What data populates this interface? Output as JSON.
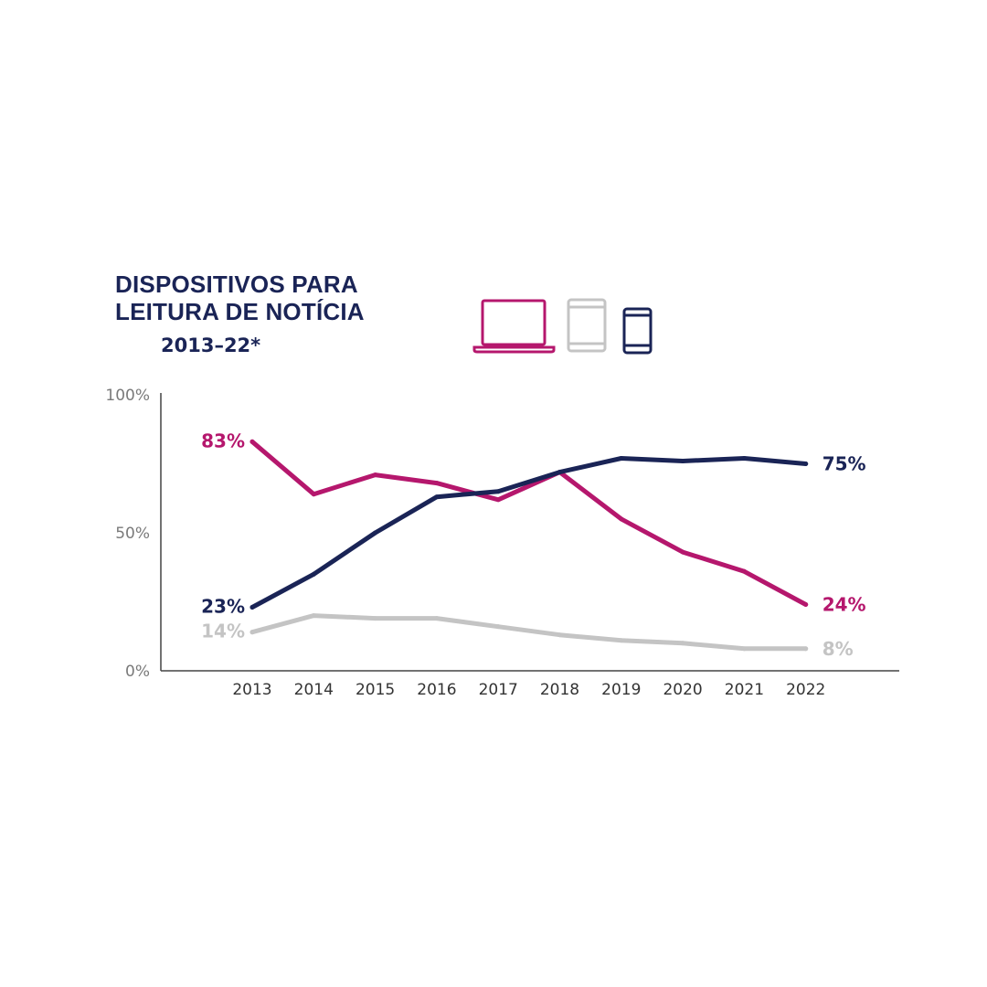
{
  "header": {
    "title_line1": "DISPOSITIVOS PARA",
    "title_line2": "LEITURA DE NOTÍCIA",
    "subtitle": "2013–22*"
  },
  "legend_icons": [
    {
      "name": "laptop-icon",
      "color": "#b5176d"
    },
    {
      "name": "tablet-icon",
      "color": "#c4c4c4"
    },
    {
      "name": "smartphone-icon",
      "color": "#1a2456"
    }
  ],
  "chart_data": {
    "type": "line",
    "x": [
      "2013",
      "2014",
      "2015",
      "2016",
      "2017",
      "2018",
      "2019",
      "2020",
      "2021",
      "2022"
    ],
    "ylim": [
      0,
      100
    ],
    "yticks": [
      "0%",
      "50%",
      "100%"
    ],
    "grid": false,
    "series": [
      {
        "color": "#b5176d",
        "values": [
          83,
          64,
          71,
          68,
          62,
          72,
          55,
          43,
          36,
          24
        ],
        "start_label": "83%",
        "end_label": "24%"
      },
      {
        "color": "#1a2456",
        "values": [
          23,
          35,
          50,
          63,
          65,
          72,
          77,
          76,
          77,
          75
        ],
        "start_label": "23%",
        "end_label": "75%"
      },
      {
        "color": "#c4c4c4",
        "values": [
          14,
          20,
          19,
          19,
          16,
          13,
          11,
          10,
          8,
          8
        ],
        "start_label": "14%",
        "end_label": "8%"
      }
    ]
  }
}
